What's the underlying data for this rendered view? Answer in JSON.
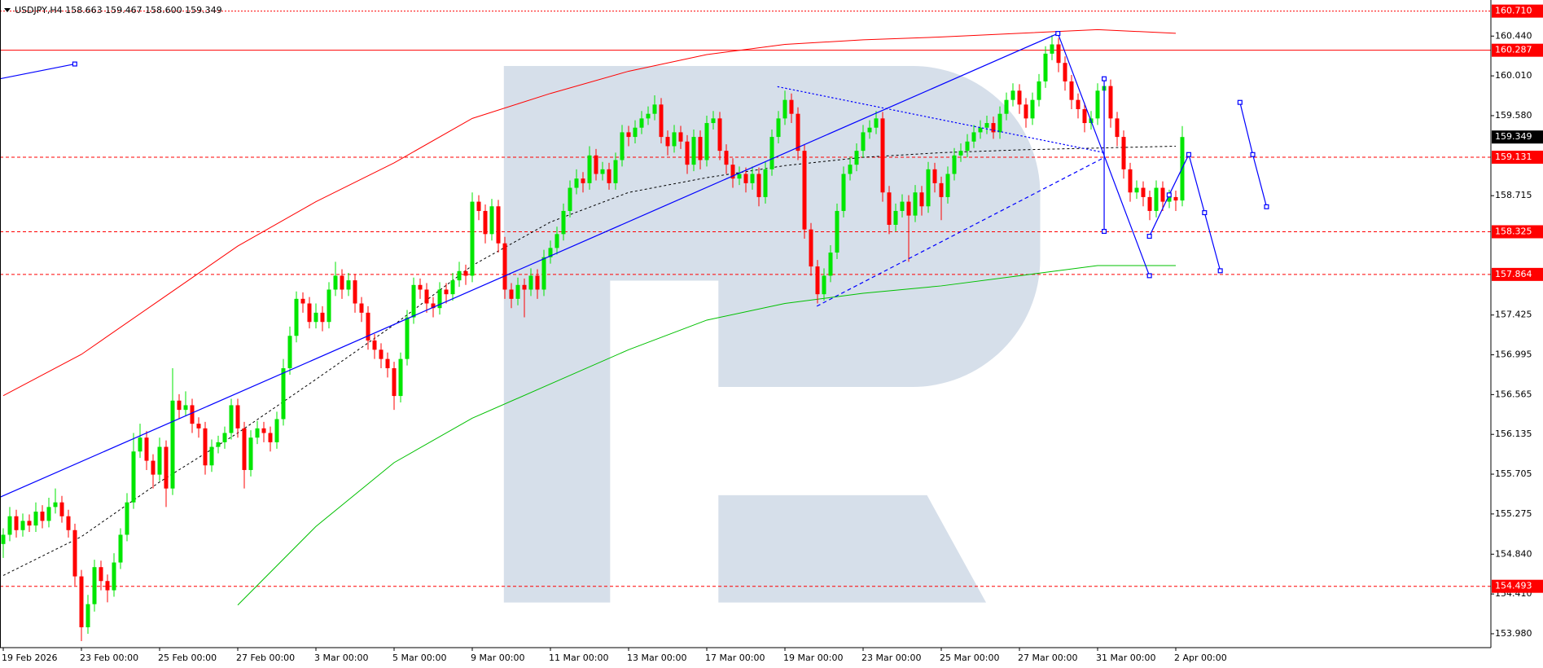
{
  "chart_data": {
    "type": "candlestick",
    "title": "USDJPY,H4  158.663 159.467 158.600 159.349",
    "up_color": "#00e600",
    "down_color": "#ff0000",
    "ylim": [
      153.83,
      160.83
    ],
    "yticks": [
      {
        "value": 153.98,
        "label": "153.980"
      },
      {
        "value": 154.41,
        "label": "154.410"
      },
      {
        "value": 154.84,
        "label": "154.840"
      },
      {
        "value": 155.275,
        "label": "155.275"
      },
      {
        "value": 155.705,
        "label": "155.705"
      },
      {
        "value": 156.135,
        "label": "156.135"
      },
      {
        "value": 156.565,
        "label": "156.565"
      },
      {
        "value": 156.995,
        "label": "156.995"
      },
      {
        "value": 157.425,
        "label": "157.425"
      },
      {
        "value": 158.715,
        "label": "158.715"
      },
      {
        "value": 159.58,
        "label": "159.580"
      },
      {
        "value": 160.01,
        "label": "160.010"
      },
      {
        "value": 160.44,
        "label": "160.440"
      }
    ],
    "xtick_labels": [
      "19 Feb 2026",
      "23 Feb 00:00",
      "25 Feb 00:00",
      "27 Feb 00:00",
      "3 Mar 00:00",
      "5 Mar 00:00",
      "9 Mar 00:00",
      "11 Mar 00:00",
      "13 Mar 00:00",
      "17 Mar 00:00",
      "19 Mar 00:00",
      "23 Mar 00:00",
      "25 Mar 00:00",
      "27 Mar 00:00",
      "31 Mar 00:00",
      "2 Apr 00:00"
    ],
    "levels": [
      {
        "value": 160.71,
        "label": "160.710",
        "style": "dotted"
      },
      {
        "value": 160.287,
        "label": "160.287",
        "style": "solid"
      },
      {
        "value": 159.131,
        "label": "159.131",
        "style": "dashed"
      },
      {
        "value": 158.325,
        "label": "158.325",
        "style": "dashed"
      },
      {
        "value": 157.864,
        "label": "157.864",
        "style": "dashed"
      },
      {
        "value": 154.493,
        "label": "154.493",
        "style": "dashed"
      }
    ],
    "current_price": {
      "value": 159.349,
      "label": "159.349"
    },
    "moving_averages": [
      {
        "color": "#ff0000",
        "style": "solid",
        "values": [
          156.553,
          157.0,
          157.585,
          158.17,
          158.65,
          159.07,
          159.55,
          159.82,
          160.06,
          160.24,
          160.35,
          160.4,
          160.43,
          160.47,
          160.51,
          160.47
        ]
      },
      {
        "color": "#00c000",
        "style": "solid",
        "values": [
          null,
          null,
          null,
          154.29,
          155.14,
          155.83,
          156.31,
          156.68,
          157.05,
          157.37,
          157.55,
          157.66,
          157.74,
          157.85,
          157.96,
          157.96
        ]
      },
      {
        "color": "#000000",
        "style": "dashed",
        "values": [
          154.61,
          155.03,
          155.62,
          156.15,
          156.73,
          157.32,
          157.96,
          158.43,
          158.75,
          158.91,
          159.04,
          159.13,
          159.18,
          159.21,
          159.23,
          159.25
        ]
      }
    ],
    "ohlc": [
      [
        154.95,
        155.12,
        154.8,
        155.05
      ],
      [
        155.05,
        155.35,
        154.98,
        155.25
      ],
      [
        155.25,
        155.32,
        155.02,
        155.1
      ],
      [
        155.1,
        155.28,
        155.03,
        155.2
      ],
      [
        155.2,
        155.27,
        155.08,
        155.15
      ],
      [
        155.15,
        155.4,
        155.08,
        155.3
      ],
      [
        155.3,
        155.37,
        155.12,
        155.2
      ],
      [
        155.2,
        155.45,
        155.13,
        155.35
      ],
      [
        155.35,
        155.55,
        155.28,
        155.4
      ],
      [
        155.4,
        155.47,
        155.18,
        155.25
      ],
      [
        155.25,
        155.32,
        155.02,
        155.1
      ],
      [
        155.1,
        155.17,
        154.5,
        154.6
      ],
      [
        154.6,
        154.67,
        153.9,
        154.05
      ],
      [
        154.05,
        154.4,
        153.98,
        154.3
      ],
      [
        154.3,
        154.78,
        154.22,
        154.7
      ],
      [
        154.7,
        154.77,
        154.45,
        154.55
      ],
      [
        154.55,
        154.62,
        154.32,
        154.45
      ],
      [
        154.45,
        154.85,
        154.38,
        154.75
      ],
      [
        154.75,
        155.12,
        154.68,
        155.05
      ],
      [
        155.05,
        155.5,
        154.98,
        155.4
      ],
      [
        155.4,
        156.15,
        155.33,
        155.95
      ],
      [
        155.95,
        156.25,
        155.88,
        156.1
      ],
      [
        156.1,
        156.17,
        155.75,
        155.85
      ],
      [
        155.85,
        155.92,
        155.55,
        155.7
      ],
      [
        155.7,
        156.1,
        155.63,
        156.0
      ],
      [
        156.0,
        156.07,
        155.35,
        155.55
      ],
      [
        155.55,
        156.85,
        155.48,
        156.5
      ],
      [
        156.5,
        156.57,
        156.3,
        156.4
      ],
      [
        156.4,
        156.6,
        156.33,
        156.45
      ],
      [
        156.45,
        156.52,
        156.15,
        156.25
      ],
      [
        156.25,
        156.32,
        156.1,
        156.2
      ],
      [
        156.2,
        156.27,
        155.7,
        155.8
      ],
      [
        155.8,
        156.08,
        155.73,
        156.0
      ],
      [
        156.0,
        156.12,
        155.93,
        156.05
      ],
      [
        156.05,
        156.22,
        155.98,
        156.15
      ],
      [
        156.15,
        156.52,
        156.08,
        156.45
      ],
      [
        156.45,
        156.52,
        156.1,
        156.2
      ],
      [
        156.2,
        156.27,
        155.55,
        155.75
      ],
      [
        155.75,
        156.18,
        155.68,
        156.1
      ],
      [
        156.1,
        156.28,
        156.03,
        156.2
      ],
      [
        156.2,
        156.27,
        156.05,
        156.15
      ],
      [
        156.15,
        156.22,
        155.95,
        156.05
      ],
      [
        156.05,
        156.38,
        155.98,
        156.3
      ],
      [
        156.3,
        156.95,
        156.23,
        156.85
      ],
      [
        156.85,
        157.3,
        156.78,
        157.2
      ],
      [
        157.2,
        157.68,
        157.13,
        157.6
      ],
      [
        157.6,
        157.67,
        157.45,
        157.55
      ],
      [
        157.55,
        157.62,
        157.28,
        157.35
      ],
      [
        157.35,
        157.55,
        157.28,
        157.45
      ],
      [
        157.45,
        157.52,
        157.25,
        157.35
      ],
      [
        157.35,
        157.78,
        157.28,
        157.7
      ],
      [
        157.7,
        158.0,
        157.63,
        157.85
      ],
      [
        157.85,
        157.92,
        157.6,
        157.7
      ],
      [
        157.7,
        157.88,
        157.63,
        157.8
      ],
      [
        157.8,
        157.87,
        157.45,
        157.55
      ],
      [
        157.55,
        157.62,
        157.35,
        157.45
      ],
      [
        157.45,
        157.52,
        157.05,
        157.15
      ],
      [
        157.15,
        157.22,
        156.95,
        157.05
      ],
      [
        157.05,
        157.12,
        156.85,
        156.95
      ],
      [
        156.95,
        157.02,
        156.75,
        156.85
      ],
      [
        156.85,
        156.92,
        156.4,
        156.55
      ],
      [
        156.55,
        157.02,
        156.48,
        156.95
      ],
      [
        156.95,
        157.48,
        156.88,
        157.4
      ],
      [
        157.4,
        157.83,
        157.33,
        157.75
      ],
      [
        157.75,
        157.82,
        157.6,
        157.7
      ],
      [
        157.7,
        157.77,
        157.45,
        157.55
      ],
      [
        157.55,
        157.62,
        157.4,
        157.5
      ],
      [
        157.5,
        157.78,
        157.43,
        157.7
      ],
      [
        157.7,
        157.77,
        157.55,
        157.65
      ],
      [
        157.65,
        157.88,
        157.58,
        157.8
      ],
      [
        157.8,
        158.0,
        157.73,
        157.9
      ],
      [
        157.9,
        157.97,
        157.75,
        157.85
      ],
      [
        157.85,
        158.75,
        157.78,
        158.65
      ],
      [
        158.65,
        158.72,
        158.45,
        158.55
      ],
      [
        158.55,
        158.62,
        158.2,
        158.3
      ],
      [
        158.3,
        158.68,
        158.23,
        158.6
      ],
      [
        158.6,
        158.67,
        158.1,
        158.2
      ],
      [
        158.2,
        158.27,
        157.6,
        157.7
      ],
      [
        157.7,
        157.77,
        157.5,
        157.6
      ],
      [
        157.6,
        157.83,
        157.53,
        157.75
      ],
      [
        157.75,
        157.82,
        157.4,
        157.7
      ],
      [
        157.7,
        157.93,
        157.63,
        157.85
      ],
      [
        157.85,
        157.92,
        157.6,
        157.7
      ],
      [
        157.7,
        158.13,
        157.63,
        158.05
      ],
      [
        158.05,
        158.23,
        157.98,
        158.15
      ],
      [
        158.15,
        158.38,
        158.08,
        158.3
      ],
      [
        158.3,
        158.63,
        158.23,
        158.55
      ],
      [
        158.55,
        158.88,
        158.48,
        158.8
      ],
      [
        158.8,
        159.0,
        158.73,
        158.9
      ],
      [
        158.9,
        158.97,
        158.75,
        158.85
      ],
      [
        158.85,
        159.25,
        158.78,
        159.15
      ],
      [
        159.15,
        159.22,
        158.88,
        158.95
      ],
      [
        158.95,
        159.08,
        158.88,
        159.0
      ],
      [
        159.0,
        159.07,
        158.78,
        158.85
      ],
      [
        158.85,
        159.18,
        158.78,
        159.1
      ],
      [
        159.1,
        159.48,
        159.03,
        159.4
      ],
      [
        159.4,
        159.47,
        159.25,
        159.35
      ],
      [
        159.35,
        159.53,
        159.28,
        159.45
      ],
      [
        159.45,
        159.63,
        159.38,
        159.55
      ],
      [
        159.55,
        159.68,
        159.48,
        159.6
      ],
      [
        159.6,
        159.8,
        159.53,
        159.7
      ],
      [
        159.7,
        159.77,
        159.28,
        159.35
      ],
      [
        159.35,
        159.42,
        159.15,
        159.25
      ],
      [
        159.25,
        159.48,
        159.18,
        159.4
      ],
      [
        159.4,
        159.47,
        159.22,
        159.3
      ],
      [
        159.3,
        159.37,
        158.95,
        159.05
      ],
      [
        159.05,
        159.43,
        158.98,
        159.35
      ],
      [
        159.35,
        159.42,
        159.0,
        159.1
      ],
      [
        159.1,
        159.58,
        159.03,
        159.5
      ],
      [
        159.5,
        159.63,
        159.43,
        159.55
      ],
      [
        159.55,
        159.62,
        159.1,
        159.2
      ],
      [
        159.2,
        159.27,
        158.95,
        159.05
      ],
      [
        159.05,
        159.12,
        158.8,
        158.9
      ],
      [
        158.9,
        159.03,
        158.83,
        158.95
      ],
      [
        158.95,
        159.02,
        158.75,
        158.85
      ],
      [
        158.85,
        159.03,
        158.78,
        158.95
      ],
      [
        158.95,
        159.02,
        158.6,
        158.7
      ],
      [
        158.7,
        159.08,
        158.63,
        159.0
      ],
      [
        159.0,
        159.43,
        158.93,
        159.35
      ],
      [
        159.35,
        159.63,
        159.28,
        159.55
      ],
      [
        159.55,
        159.85,
        159.48,
        159.75
      ],
      [
        159.75,
        159.82,
        159.5,
        159.6
      ],
      [
        159.6,
        159.67,
        159.1,
        159.2
      ],
      [
        159.2,
        159.27,
        158.25,
        158.35
      ],
      [
        158.35,
        158.42,
        157.85,
        157.95
      ],
      [
        157.95,
        158.02,
        157.55,
        157.65
      ],
      [
        157.65,
        157.93,
        157.58,
        157.85
      ],
      [
        157.85,
        158.18,
        157.78,
        158.1
      ],
      [
        158.1,
        158.63,
        158.03,
        158.55
      ],
      [
        158.55,
        159.03,
        158.48,
        158.95
      ],
      [
        158.95,
        159.13,
        158.88,
        159.05
      ],
      [
        159.05,
        159.28,
        158.98,
        159.2
      ],
      [
        159.2,
        159.48,
        159.13,
        159.4
      ],
      [
        159.4,
        159.53,
        159.33,
        159.45
      ],
      [
        159.45,
        159.63,
        159.38,
        159.55
      ],
      [
        159.55,
        159.62,
        158.65,
        158.75
      ],
      [
        158.75,
        158.82,
        158.3,
        158.4
      ],
      [
        158.4,
        158.63,
        158.33,
        158.55
      ],
      [
        158.55,
        158.73,
        158.48,
        158.65
      ],
      [
        158.65,
        158.72,
        158.0,
        158.5
      ],
      [
        158.5,
        158.83,
        158.43,
        158.75
      ],
      [
        158.75,
        158.82,
        158.5,
        158.6
      ],
      [
        158.6,
        159.08,
        158.53,
        159.0
      ],
      [
        159.0,
        159.07,
        158.75,
        158.85
      ],
      [
        158.85,
        158.92,
        158.45,
        158.7
      ],
      [
        158.7,
        159.03,
        158.63,
        158.95
      ],
      [
        158.95,
        159.23,
        158.88,
        159.15
      ],
      [
        159.15,
        159.28,
        159.08,
        159.2
      ],
      [
        159.2,
        159.38,
        159.13,
        159.3
      ],
      [
        159.3,
        159.48,
        159.23,
        159.4
      ],
      [
        159.4,
        159.53,
        159.33,
        159.45
      ],
      [
        159.45,
        159.58,
        159.38,
        159.5
      ],
      [
        159.5,
        159.57,
        159.33,
        159.4
      ],
      [
        159.4,
        159.68,
        159.33,
        159.6
      ],
      [
        159.6,
        159.83,
        159.53,
        159.75
      ],
      [
        159.75,
        159.93,
        159.68,
        159.85
      ],
      [
        159.85,
        159.92,
        159.6,
        159.7
      ],
      [
        159.7,
        159.77,
        159.45,
        159.55
      ],
      [
        159.55,
        159.83,
        159.48,
        159.75
      ],
      [
        159.75,
        160.03,
        159.68,
        159.95
      ],
      [
        159.95,
        160.33,
        159.88,
        160.25
      ],
      [
        160.25,
        160.45,
        160.18,
        160.35
      ],
      [
        160.35,
        160.42,
        160.05,
        160.15
      ],
      [
        160.15,
        160.22,
        159.85,
        159.95
      ],
      [
        159.95,
        160.02,
        159.65,
        159.75
      ],
      [
        159.75,
        159.82,
        159.55,
        159.65
      ],
      [
        159.65,
        159.72,
        159.4,
        159.5
      ],
      [
        159.5,
        159.63,
        159.43,
        159.55
      ],
      [
        159.55,
        159.93,
        159.48,
        159.85
      ],
      [
        159.85,
        160.0,
        159.78,
        159.9
      ],
      [
        159.9,
        159.97,
        159.45,
        159.55
      ],
      [
        159.55,
        159.62,
        159.25,
        159.35
      ],
      [
        159.35,
        159.42,
        158.9,
        159.0
      ],
      [
        159.0,
        159.07,
        158.65,
        158.75
      ],
      [
        158.75,
        158.88,
        158.68,
        158.8
      ],
      [
        158.8,
        158.87,
        158.6,
        158.7
      ],
      [
        158.7,
        158.77,
        158.45,
        158.55
      ],
      [
        158.55,
        158.88,
        158.48,
        158.8
      ],
      [
        158.8,
        158.87,
        158.55,
        158.65
      ],
      [
        158.65,
        158.78,
        158.58,
        158.7
      ],
      [
        158.7,
        158.77,
        158.55,
        158.663
      ],
      [
        158.663,
        159.467,
        158.6,
        159.349
      ]
    ]
  }
}
